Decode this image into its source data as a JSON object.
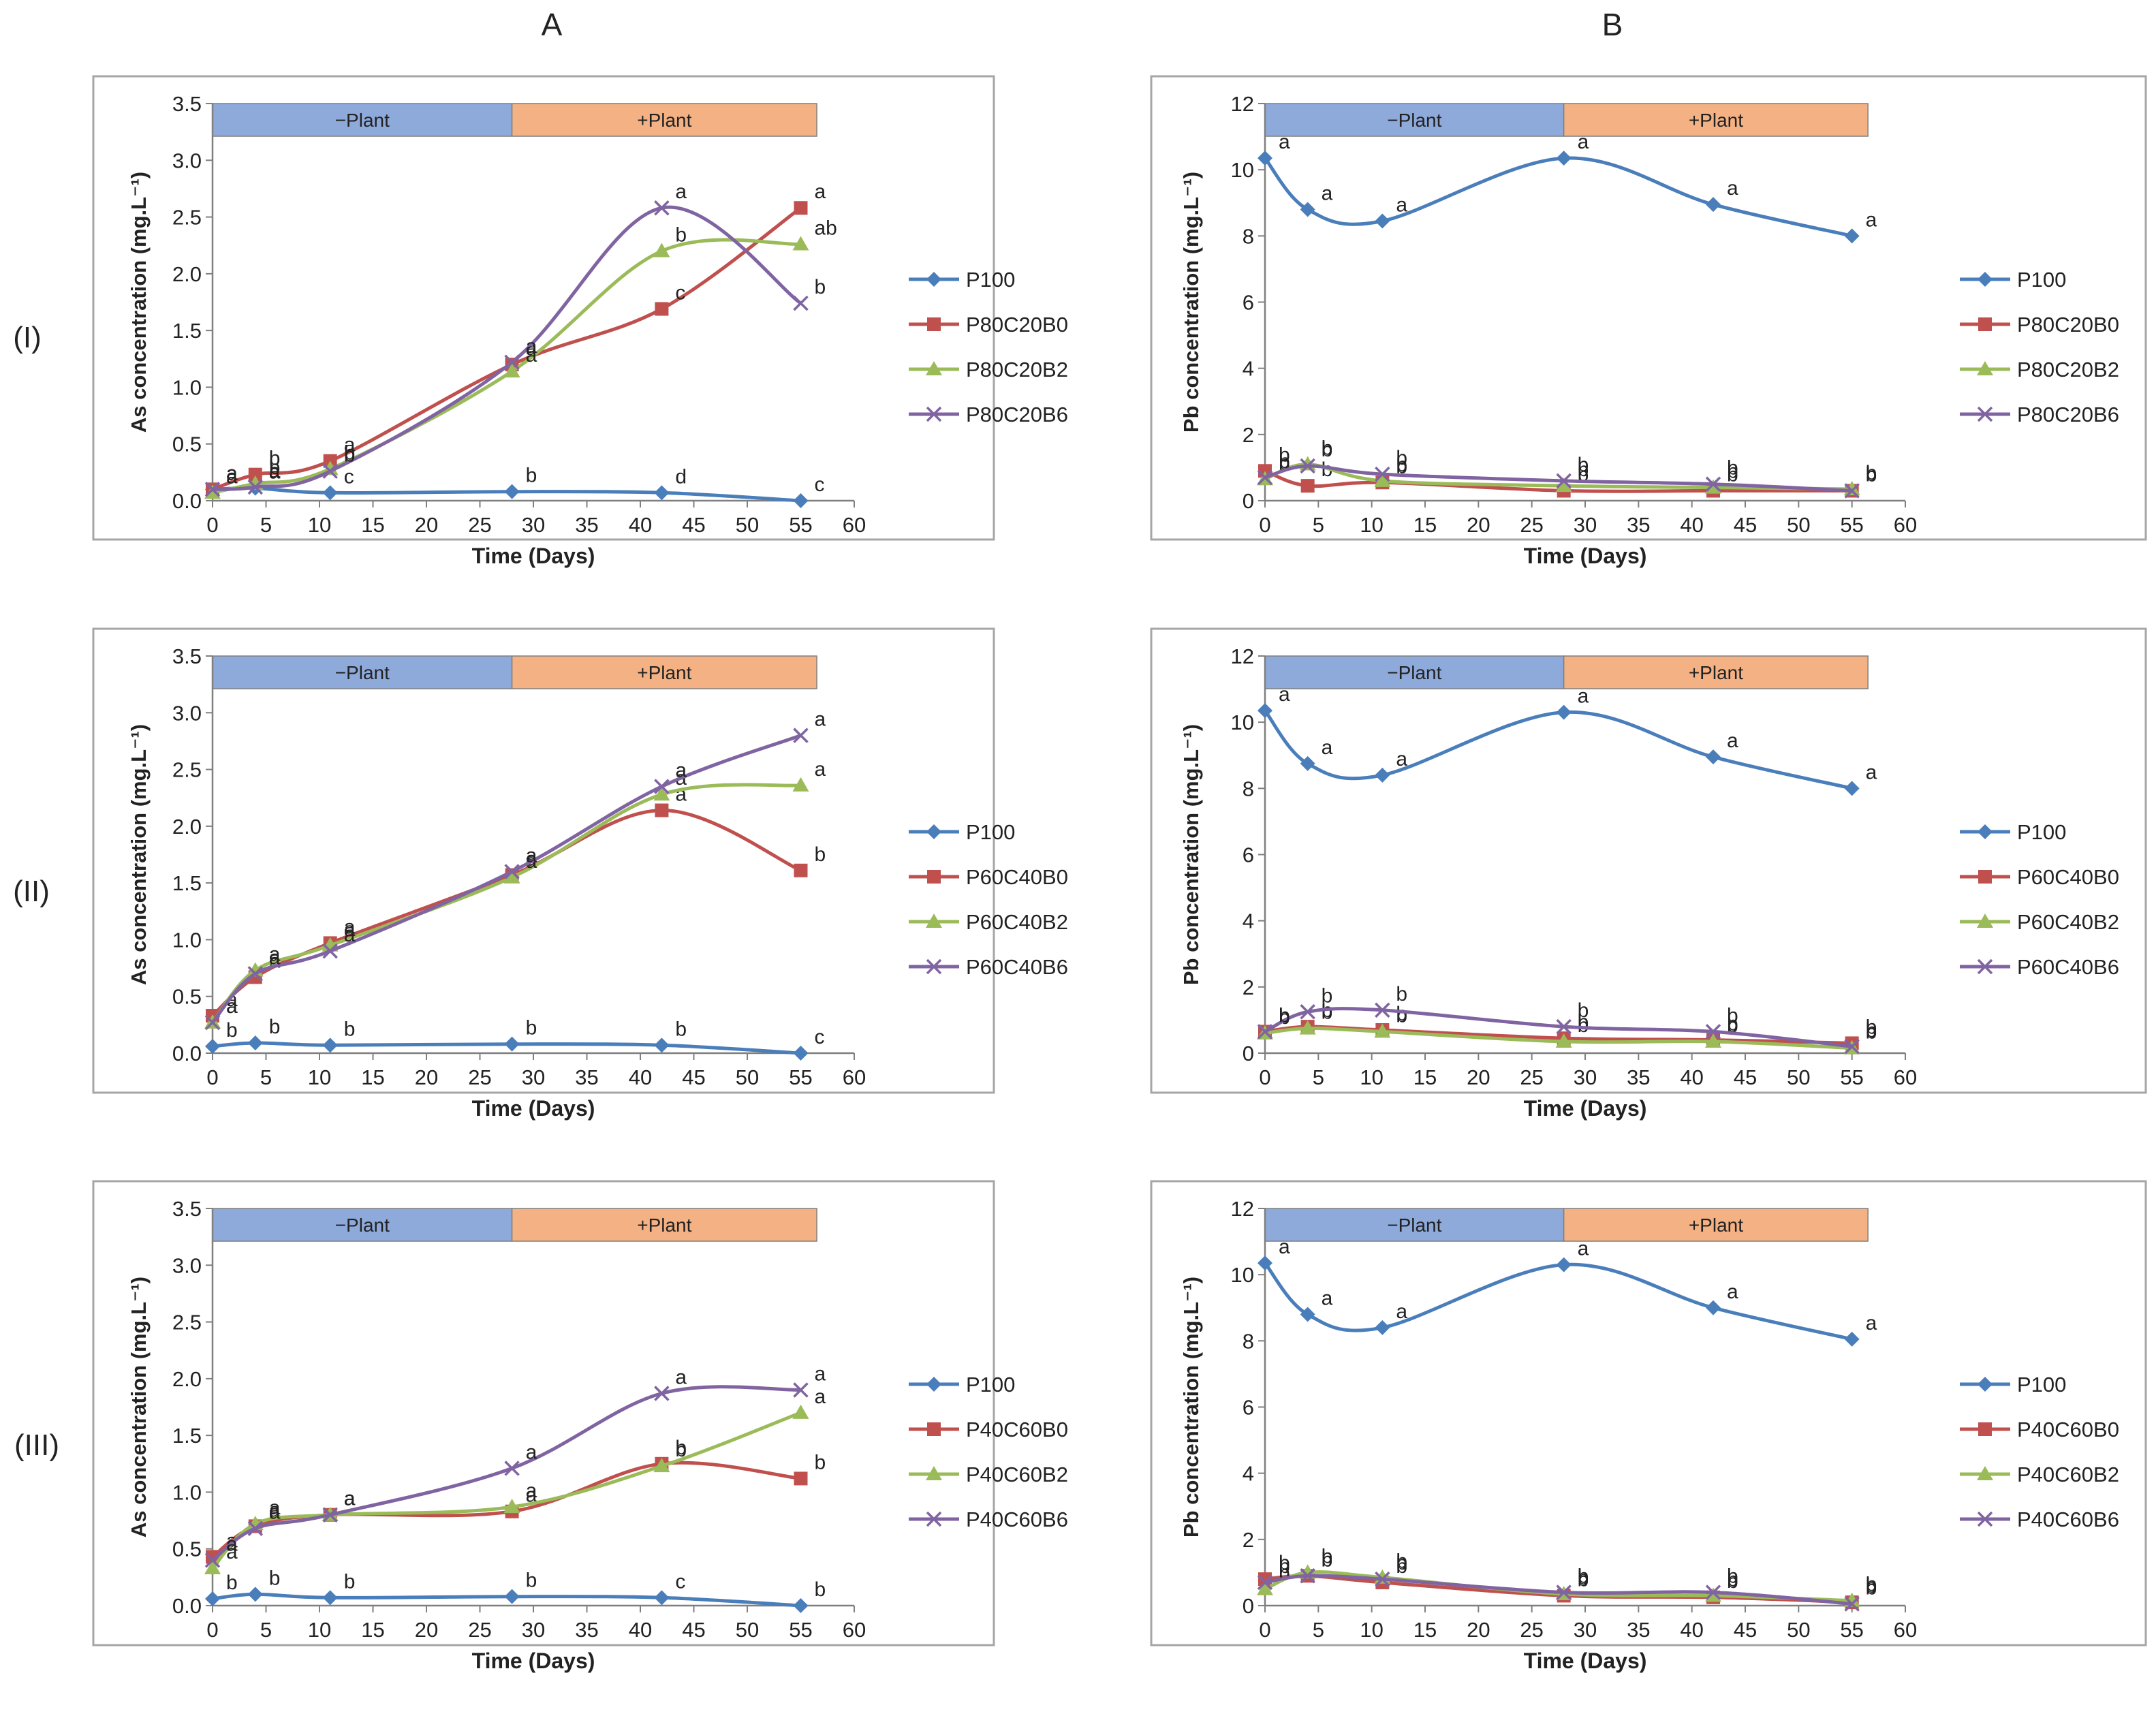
{
  "figure": {
    "col_labels": [
      "A",
      "B"
    ],
    "row_labels": [
      "(I)",
      "(II)",
      "(III)"
    ],
    "phase_labels": [
      "−Plant",
      "+Plant"
    ],
    "colors": {
      "P100": "#4a7ebb",
      "B0": "#c0504d",
      "B2": "#9bbb59",
      "B6": "#8064a2",
      "minus_plant": "#8eaadb",
      "plus_plant": "#f4b183",
      "frame": "#a6a6a6"
    }
  },
  "chart_data": [
    {
      "type": "line",
      "id": "A-I",
      "xlabel": "Time (Days)",
      "ylabel": "As concentration (mg.L⁻¹)",
      "ylim": [
        0,
        3.5
      ],
      "xlim": [
        0,
        60
      ],
      "ytick_step": 0.5,
      "ytick_decimals": 1,
      "yticks": [
        "0.0",
        "0.5",
        "1.0",
        "1.5",
        "2.0",
        "2.5",
        "3.0",
        "3.5"
      ],
      "xticks": [
        "0",
        "5",
        "10",
        "15",
        "20",
        "25",
        "30",
        "35",
        "40",
        "45",
        "50",
        "55",
        "60"
      ],
      "phase_ranges": [
        [
          0,
          28
        ],
        [
          28,
          56.5
        ]
      ],
      "x": [
        0,
        4,
        11,
        28,
        42,
        55
      ],
      "series": [
        {
          "name": "P100",
          "key": "P100",
          "marker": "diamond",
          "values": [
            0.1,
            0.11,
            0.07,
            0.08,
            0.07,
            0.0
          ],
          "letters": [
            "a",
            "a",
            "c",
            "b",
            "d",
            "c"
          ]
        },
        {
          "name": "P80C20B0",
          "key": "B0",
          "marker": "square",
          "values": [
            0.1,
            0.23,
            0.35,
            1.2,
            1.69,
            2.58
          ],
          "letters": [
            "a",
            "b",
            "a",
            "a",
            "c",
            "a"
          ]
        },
        {
          "name": "P80C20B2",
          "key": "B2",
          "marker": "triangle",
          "values": [
            0.07,
            0.15,
            0.28,
            1.14,
            2.2,
            2.26
          ],
          "letters": [
            "a",
            "b",
            "b",
            "a",
            "b",
            "ab"
          ]
        },
        {
          "name": "P80C20B6",
          "key": "B6",
          "marker": "cross",
          "values": [
            0.1,
            0.12,
            0.26,
            1.22,
            2.58,
            1.74
          ],
          "letters": [
            "a",
            "a",
            "b",
            "a",
            "a",
            "b"
          ]
        }
      ]
    },
    {
      "type": "line",
      "id": "B-I",
      "xlabel": "Time (Days)",
      "ylabel": "Pb concentration (mg.L⁻¹)",
      "ylim": [
        0,
        12
      ],
      "xlim": [
        0,
        60
      ],
      "ytick_step": 2,
      "ytick_decimals": 0,
      "yticks": [
        "0",
        "2",
        "4",
        "6",
        "8",
        "10",
        "12"
      ],
      "xticks": [
        "0",
        "5",
        "10",
        "15",
        "20",
        "25",
        "30",
        "35",
        "40",
        "45",
        "50",
        "55",
        "60"
      ],
      "phase_ranges": [
        [
          0,
          28
        ],
        [
          28,
          56.5
        ]
      ],
      "x": [
        0,
        4,
        11,
        28,
        42,
        55
      ],
      "series": [
        {
          "name": "P100",
          "key": "P100",
          "marker": "diamond",
          "values": [
            10.35,
            8.8,
            8.45,
            10.35,
            8.95,
            8.0
          ],
          "letters": [
            "a",
            "a",
            "a",
            "a",
            "a",
            "a"
          ]
        },
        {
          "name": "P80C20B0",
          "key": "B0",
          "marker": "square",
          "values": [
            0.9,
            0.45,
            0.55,
            0.3,
            0.3,
            0.3
          ],
          "letters": [
            "b",
            "b",
            "b",
            "b",
            "b",
            "b"
          ]
        },
        {
          "name": "P80C20B2",
          "key": "B2",
          "marker": "triangle",
          "values": [
            0.65,
            1.1,
            0.6,
            0.45,
            0.4,
            0.35
          ],
          "letters": [
            "b",
            "b",
            "b",
            "b",
            "b",
            "b"
          ]
        },
        {
          "name": "P80C20B6",
          "key": "B6",
          "marker": "cross",
          "values": [
            0.7,
            1.05,
            0.8,
            0.6,
            0.5,
            0.3
          ],
          "letters": [
            "b",
            "b",
            "b",
            "b",
            "b",
            "b"
          ]
        }
      ]
    },
    {
      "type": "line",
      "id": "A-II",
      "xlabel": "Time (Days)",
      "ylabel": "As concentration (mg.L⁻¹)",
      "ylim": [
        0,
        3.5
      ],
      "xlim": [
        0,
        60
      ],
      "ytick_step": 0.5,
      "ytick_decimals": 1,
      "yticks": [
        "0.0",
        "0.5",
        "1.0",
        "1.5",
        "2.0",
        "2.5",
        "3.0",
        "3.5"
      ],
      "xticks": [
        "0",
        "5",
        "10",
        "15",
        "20",
        "25",
        "30",
        "35",
        "40",
        "45",
        "50",
        "55",
        "60"
      ],
      "phase_ranges": [
        [
          0,
          28
        ],
        [
          28,
          56.5
        ]
      ],
      "x": [
        0,
        4,
        11,
        28,
        42,
        55
      ],
      "series": [
        {
          "name": "P100",
          "key": "P100",
          "marker": "diamond",
          "values": [
            0.06,
            0.09,
            0.07,
            0.08,
            0.07,
            0.0
          ],
          "letters": [
            "b",
            "b",
            "b",
            "b",
            "b",
            "c"
          ]
        },
        {
          "name": "P60C40B0",
          "key": "B0",
          "marker": "square",
          "values": [
            0.33,
            0.67,
            0.97,
            1.57,
            2.14,
            1.61
          ],
          "letters": [
            "a",
            "a",
            "a",
            "a",
            "a",
            "b"
          ]
        },
        {
          "name": "P60C40B2",
          "key": "B2",
          "marker": "triangle",
          "values": [
            0.27,
            0.73,
            0.95,
            1.55,
            2.28,
            2.36
          ],
          "letters": [
            "a",
            "a",
            "a",
            "a",
            "a",
            "a"
          ]
        },
        {
          "name": "P60C40B6",
          "key": "B6",
          "marker": "cross",
          "values": [
            0.27,
            0.7,
            0.9,
            1.6,
            2.35,
            2.8
          ],
          "letters": [
            "a",
            "a",
            "a",
            "a",
            "a",
            "a"
          ]
        }
      ]
    },
    {
      "type": "line",
      "id": "B-II",
      "xlabel": "Time (Days)",
      "ylabel": "Pb concentration (mg.L⁻¹)",
      "ylim": [
        0,
        12
      ],
      "xlim": [
        0,
        60
      ],
      "ytick_step": 2,
      "ytick_decimals": 0,
      "yticks": [
        "0",
        "2",
        "4",
        "6",
        "8",
        "10",
        "12"
      ],
      "xticks": [
        "0",
        "5",
        "10",
        "15",
        "20",
        "25",
        "30",
        "35",
        "40",
        "45",
        "50",
        "55",
        "60"
      ],
      "phase_ranges": [
        [
          0,
          28
        ],
        [
          28,
          56.5
        ]
      ],
      "x": [
        0,
        4,
        11,
        28,
        42,
        55
      ],
      "series": [
        {
          "name": "P100",
          "key": "P100",
          "marker": "diamond",
          "values": [
            10.35,
            8.75,
            8.4,
            10.3,
            8.95,
            8.0
          ],
          "letters": [
            "a",
            "a",
            "a",
            "a",
            "a",
            "a"
          ]
        },
        {
          "name": "P60C40B0",
          "key": "B0",
          "marker": "square",
          "values": [
            0.65,
            0.8,
            0.7,
            0.45,
            0.4,
            0.3
          ],
          "letters": [
            "b",
            "b",
            "b",
            "b",
            "b",
            "b"
          ]
        },
        {
          "name": "P60C40B2",
          "key": "B2",
          "marker": "triangle",
          "values": [
            0.6,
            0.75,
            0.65,
            0.35,
            0.35,
            0.15
          ],
          "letters": [
            "b",
            "b",
            "b",
            "b",
            "b",
            "b"
          ]
        },
        {
          "name": "P60C40B6",
          "key": "B6",
          "marker": "cross",
          "values": [
            0.65,
            1.25,
            1.3,
            0.8,
            0.65,
            0.2
          ],
          "letters": [
            "b",
            "b",
            "b",
            "b",
            "b",
            "b"
          ]
        }
      ]
    },
    {
      "type": "line",
      "id": "A-III",
      "xlabel": "Time (Days)",
      "ylabel": "As concentration (mg.L⁻¹)",
      "ylim": [
        0,
        3.5
      ],
      "xlim": [
        0,
        60
      ],
      "ytick_step": 0.5,
      "ytick_decimals": 1,
      "yticks": [
        "0.0",
        "0.5",
        "1.0",
        "1.5",
        "2.0",
        "2.5",
        "3.0",
        "3.5"
      ],
      "xticks": [
        "0",
        "5",
        "10",
        "15",
        "20",
        "25",
        "30",
        "35",
        "40",
        "45",
        "50",
        "55",
        "60"
      ],
      "phase_ranges": [
        [
          0,
          28
        ],
        [
          28,
          56.5
        ]
      ],
      "x": [
        0,
        4,
        11,
        28,
        42,
        55
      ],
      "series": [
        {
          "name": "P100",
          "key": "P100",
          "marker": "diamond",
          "values": [
            0.06,
            0.1,
            0.07,
            0.08,
            0.07,
            0.0
          ],
          "letters": [
            "b",
            "b",
            "b",
            "b",
            "c",
            "b"
          ]
        },
        {
          "name": "P40C60B0",
          "key": "B0",
          "marker": "square",
          "values": [
            0.43,
            0.7,
            0.8,
            0.83,
            1.25,
            1.12
          ],
          "letters": [
            "a",
            "a",
            "a",
            "a",
            "b",
            "b"
          ]
        },
        {
          "name": "P40C60B2",
          "key": "B2",
          "marker": "triangle",
          "values": [
            0.33,
            0.72,
            0.8,
            0.87,
            1.23,
            1.7
          ],
          "letters": [
            "a",
            "a",
            "a",
            "a",
            "b",
            "a"
          ]
        },
        {
          "name": "P40C60B6",
          "key": "B6",
          "marker": "cross",
          "values": [
            0.4,
            0.68,
            0.8,
            1.21,
            1.87,
            1.9
          ],
          "letters": [
            "a",
            "a",
            "a",
            "a",
            "a",
            "a"
          ]
        }
      ]
    },
    {
      "type": "line",
      "id": "B-III",
      "xlabel": "Time (Days)",
      "ylabel": "Pb concentration (mg.L⁻¹)",
      "ylim": [
        0,
        12
      ],
      "xlim": [
        0,
        60
      ],
      "ytick_step": 2,
      "ytick_decimals": 0,
      "yticks": [
        "0",
        "2",
        "4",
        "6",
        "8",
        "10",
        "12"
      ],
      "xticks": [
        "0",
        "5",
        "10",
        "15",
        "20",
        "25",
        "30",
        "35",
        "40",
        "45",
        "50",
        "55",
        "60"
      ],
      "phase_ranges": [
        [
          0,
          28
        ],
        [
          28,
          56.5
        ]
      ],
      "x": [
        0,
        4,
        11,
        28,
        42,
        55
      ],
      "series": [
        {
          "name": "P100",
          "key": "P100",
          "marker": "diamond",
          "values": [
            10.35,
            8.8,
            8.4,
            10.3,
            9.0,
            8.05
          ],
          "letters": [
            "a",
            "a",
            "a",
            "a",
            "a",
            "a"
          ]
        },
        {
          "name": "P40C60B0",
          "key": "B0",
          "marker": "square",
          "values": [
            0.8,
            0.9,
            0.7,
            0.3,
            0.25,
            0.1
          ],
          "letters": [
            "b",
            "b",
            "b",
            "b",
            "b",
            "b"
          ]
        },
        {
          "name": "P40C60B2",
          "key": "B2",
          "marker": "triangle",
          "values": [
            0.5,
            1.0,
            0.85,
            0.35,
            0.3,
            0.15
          ],
          "letters": [
            "b",
            "b",
            "b",
            "b",
            "b",
            "b"
          ]
        },
        {
          "name": "P40C60B6",
          "key": "B6",
          "marker": "cross",
          "values": [
            0.7,
            0.9,
            0.8,
            0.4,
            0.4,
            0.05
          ],
          "letters": [
            "b",
            "b",
            "b",
            "b",
            "b",
            "b"
          ]
        }
      ]
    }
  ]
}
